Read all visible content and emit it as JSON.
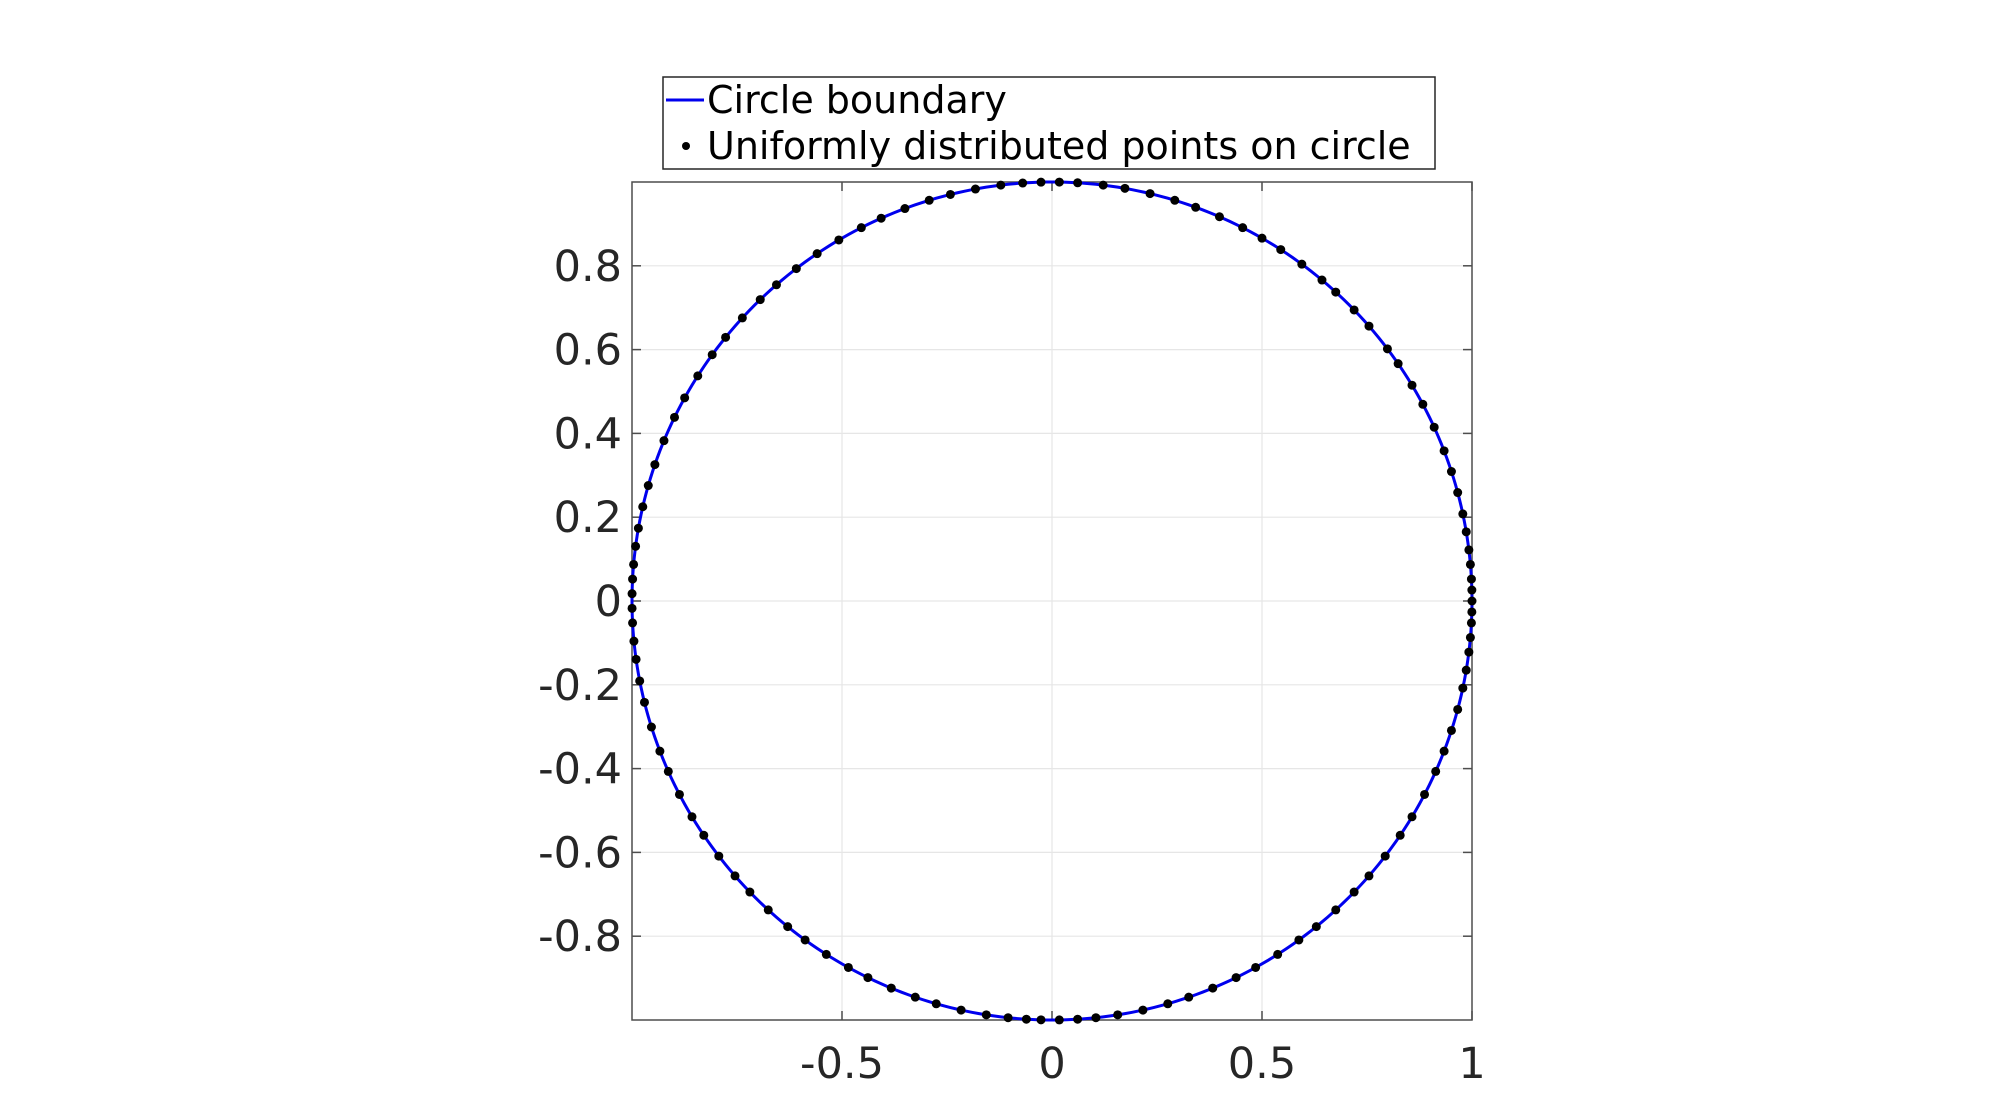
{
  "chart_data": {
    "type": "scatter",
    "title": "",
    "xlabel": "",
    "ylabel": "",
    "xlim": [
      -1,
      1
    ],
    "ylim": [
      -1,
      1
    ],
    "aspect": "equal",
    "grid": true,
    "legend_position": "top (outside, above axes)",
    "xticks": [
      -0.5,
      0,
      0.5,
      1
    ],
    "xtick_labels": [
      "-0.5",
      "0",
      "0.5",
      "1"
    ],
    "yticks": [
      -0.8,
      -0.6,
      -0.4,
      -0.2,
      0,
      0.2,
      0.4,
      0.6,
      0.8
    ],
    "ytick_labels": [
      "-0.8",
      "-0.6",
      "-0.4",
      "-0.2",
      "0",
      "0.2",
      "0.4",
      "0.6",
      "0.8"
    ],
    "colors": {
      "boundary": "#0000ee",
      "points": "#000000",
      "grid": "#e6e6e6",
      "axes": "#4d4d4d"
    },
    "series": [
      {
        "name": "Circle boundary",
        "kind": "line",
        "center": [
          0,
          0
        ],
        "radius": 1
      },
      {
        "name": "Uniformly distributed points on circle",
        "kind": "points",
        "angles_deg": [
          0,
          1.5,
          3,
          5,
          7,
          9.5,
          12,
          15,
          18,
          21,
          24.5,
          28,
          31,
          34.5,
          37,
          41,
          44,
          47.5,
          50,
          53.5,
          57,
          60,
          63,
          66.5,
          70,
          73,
          76.5,
          80,
          83,
          86.5,
          89,
          91.5,
          94,
          97,
          100.5,
          104,
          107,
          110.5,
          114,
          117,
          120.5,
          124,
          127.5,
          131,
          134,
          137.5,
          141,
          144,
          147.5,
          151,
          154,
          157.5,
          161,
          164,
          167,
          170,
          172.5,
          175,
          177,
          179,
          181,
          183,
          185.5,
          188,
          191,
          194,
          197.5,
          201,
          204,
          207.5,
          211,
          214,
          217.5,
          221,
          224,
          227.5,
          231,
          234,
          237.5,
          241,
          244,
          247.5,
          251,
          254,
          257.5,
          261,
          264,
          266.5,
          268.5,
          271,
          273.5,
          276,
          279,
          282.5,
          286,
          289,
          292.5,
          296,
          299,
          302.5,
          306,
          309,
          312.5,
          316,
          319,
          322.5,
          326,
          329,
          332.5,
          336,
          339,
          342,
          345,
          348,
          350.5,
          353,
          355,
          357,
          358.5
        ]
      }
    ]
  }
}
